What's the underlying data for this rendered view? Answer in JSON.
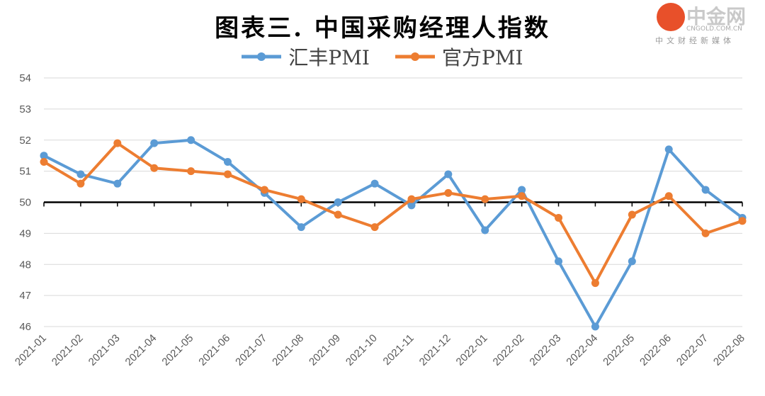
{
  "chart_data": {
    "type": "line",
    "title": "图表三. 中国采购经理人指数",
    "categories": [
      "2021-01",
      "2021-02",
      "2021-03",
      "2021-04",
      "2021-05",
      "2021-06",
      "2021-07",
      "2021-08",
      "2021-09",
      "2021-10",
      "2021-11",
      "2021-12",
      "2022-01",
      "2022-02",
      "2022-03",
      "2022-04",
      "2022-05",
      "2022-06",
      "2022-07",
      "2022-08"
    ],
    "series": [
      {
        "name": "汇丰PMI",
        "color": "#5B9BD5",
        "values": [
          51.5,
          50.9,
          50.6,
          51.9,
          52.0,
          51.3,
          50.3,
          49.2,
          50.0,
          50.6,
          49.9,
          50.9,
          49.1,
          50.4,
          48.1,
          46.0,
          48.1,
          51.7,
          50.4,
          49.5
        ]
      },
      {
        "name": "官方PMI",
        "color": "#ED7D31",
        "values": [
          51.3,
          50.6,
          51.9,
          51.1,
          51.0,
          50.9,
          50.4,
          50.1,
          49.6,
          49.2,
          50.1,
          50.3,
          50.1,
          50.2,
          49.5,
          47.4,
          49.6,
          50.2,
          49.0,
          49.4
        ]
      }
    ],
    "ylim": [
      46,
      54
    ],
    "yticks": [
      "46",
      "47",
      "48",
      "49",
      "50",
      "51",
      "52",
      "53",
      "54"
    ],
    "reference_line": 50,
    "grid": true,
    "legend": "top"
  },
  "watermark": {
    "name": "中金网",
    "url": "CNGOLD.COM.CN",
    "tagline": "中文财经新媒体"
  }
}
